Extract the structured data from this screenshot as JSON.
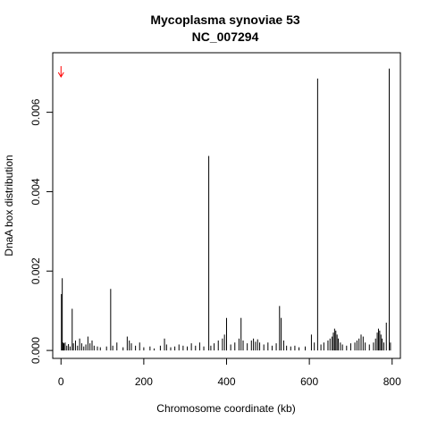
{
  "chart_data": {
    "type": "bar",
    "title": "Mycoplasma synoviae 53",
    "subtitle": "NC_007294",
    "xlabel": "Chromosome coordinate (kb)",
    "ylabel": "DnaA box distribution",
    "xlim": [
      -20,
      820
    ],
    "ylim": [
      -0.0002,
      0.0075
    ],
    "x_ticks": [
      0,
      200,
      400,
      600,
      800
    ],
    "x_tick_labels": [
      "0",
      "200",
      "400",
      "600",
      "800"
    ],
    "y_ticks": [
      0.0,
      0.002,
      0.004,
      0.006
    ],
    "y_tick_labels": [
      "0.000",
      "0.002",
      "0.004",
      "0.006"
    ],
    "grid": false,
    "origin_marker": {
      "x": 0,
      "color": "#ff0000"
    },
    "bar_color": "#000000",
    "bars": [
      {
        "x": 1,
        "y": 0.00142
      },
      {
        "x": 3,
        "y": 0.00182
      },
      {
        "x": 5,
        "y": 0.0002
      },
      {
        "x": 7,
        "y": 0.00018
      },
      {
        "x": 10,
        "y": 0.0002
      },
      {
        "x": 14,
        "y": 0.00012
      },
      {
        "x": 18,
        "y": 0.00016
      },
      {
        "x": 22,
        "y": 0.0001
      },
      {
        "x": 27,
        "y": 0.00105
      },
      {
        "x": 30,
        "y": 0.00018
      },
      {
        "x": 35,
        "y": 0.00025
      },
      {
        "x": 40,
        "y": 0.00012
      },
      {
        "x": 45,
        "y": 0.0003
      },
      {
        "x": 50,
        "y": 0.00018
      },
      {
        "x": 55,
        "y": 0.0001
      },
      {
        "x": 60,
        "y": 0.00015
      },
      {
        "x": 65,
        "y": 0.00035
      },
      {
        "x": 70,
        "y": 0.00018
      },
      {
        "x": 75,
        "y": 0.00025
      },
      {
        "x": 80,
        "y": 0.00012
      },
      {
        "x": 88,
        "y": 0.0001
      },
      {
        "x": 95,
        "y": 8e-05
      },
      {
        "x": 110,
        "y": 0.0001
      },
      {
        "x": 120,
        "y": 0.00155
      },
      {
        "x": 125,
        "y": 0.00012
      },
      {
        "x": 135,
        "y": 0.0002
      },
      {
        "x": 150,
        "y": 8e-05
      },
      {
        "x": 160,
        "y": 0.00035
      },
      {
        "x": 165,
        "y": 0.00025
      },
      {
        "x": 170,
        "y": 0.00018
      },
      {
        "x": 180,
        "y": 0.00012
      },
      {
        "x": 190,
        "y": 0.0002
      },
      {
        "x": 200,
        "y": 8e-05
      },
      {
        "x": 215,
        "y": 0.0001
      },
      {
        "x": 225,
        "y": 5e-05
      },
      {
        "x": 240,
        "y": 0.00012
      },
      {
        "x": 250,
        "y": 0.0003
      },
      {
        "x": 255,
        "y": 0.00015
      },
      {
        "x": 265,
        "y": 8e-05
      },
      {
        "x": 275,
        "y": 0.0001
      },
      {
        "x": 285,
        "y": 0.00015
      },
      {
        "x": 295,
        "y": 0.00012
      },
      {
        "x": 305,
        "y": 0.0001
      },
      {
        "x": 315,
        "y": 0.00018
      },
      {
        "x": 325,
        "y": 0.00012
      },
      {
        "x": 335,
        "y": 0.0002
      },
      {
        "x": 345,
        "y": 0.0001
      },
      {
        "x": 357,
        "y": 0.0049
      },
      {
        "x": 362,
        "y": 0.00012
      },
      {
        "x": 370,
        "y": 0.00018
      },
      {
        "x": 380,
        "y": 0.00025
      },
      {
        "x": 390,
        "y": 0.0003
      },
      {
        "x": 395,
        "y": 0.0004
      },
      {
        "x": 400,
        "y": 0.00082
      },
      {
        "x": 410,
        "y": 0.00015
      },
      {
        "x": 420,
        "y": 0.0002
      },
      {
        "x": 430,
        "y": 0.0003
      },
      {
        "x": 435,
        "y": 0.00082
      },
      {
        "x": 440,
        "y": 0.00025
      },
      {
        "x": 450,
        "y": 0.00018
      },
      {
        "x": 460,
        "y": 0.00025
      },
      {
        "x": 465,
        "y": 0.0003
      },
      {
        "x": 470,
        "y": 0.00022
      },
      {
        "x": 475,
        "y": 0.00028
      },
      {
        "x": 480,
        "y": 0.0002
      },
      {
        "x": 490,
        "y": 0.00015
      },
      {
        "x": 500,
        "y": 0.0002
      },
      {
        "x": 510,
        "y": 0.00012
      },
      {
        "x": 520,
        "y": 0.00018
      },
      {
        "x": 528,
        "y": 0.00112
      },
      {
        "x": 532,
        "y": 0.00082
      },
      {
        "x": 538,
        "y": 0.00025
      },
      {
        "x": 545,
        "y": 0.00012
      },
      {
        "x": 555,
        "y": 0.0001
      },
      {
        "x": 565,
        "y": 0.00012
      },
      {
        "x": 575,
        "y": 8e-05
      },
      {
        "x": 590,
        "y": 0.0001
      },
      {
        "x": 605,
        "y": 0.0004
      },
      {
        "x": 612,
        "y": 0.0002
      },
      {
        "x": 620,
        "y": 0.00685
      },
      {
        "x": 628,
        "y": 0.00015
      },
      {
        "x": 635,
        "y": 0.0002
      },
      {
        "x": 645,
        "y": 0.00025
      },
      {
        "x": 650,
        "y": 0.0003
      },
      {
        "x": 655,
        "y": 0.00035
      },
      {
        "x": 658,
        "y": 0.00045
      },
      {
        "x": 661,
        "y": 0.00055
      },
      {
        "x": 664,
        "y": 0.0005
      },
      {
        "x": 667,
        "y": 0.0004
      },
      {
        "x": 670,
        "y": 0.0003
      },
      {
        "x": 675,
        "y": 0.0002
      },
      {
        "x": 680,
        "y": 0.00015
      },
      {
        "x": 690,
        "y": 0.00012
      },
      {
        "x": 700,
        "y": 0.00018
      },
      {
        "x": 710,
        "y": 0.0002
      },
      {
        "x": 715,
        "y": 0.00025
      },
      {
        "x": 720,
        "y": 0.0003
      },
      {
        "x": 725,
        "y": 0.0004
      },
      {
        "x": 730,
        "y": 0.00035
      },
      {
        "x": 735,
        "y": 0.0002
      },
      {
        "x": 745,
        "y": 0.00015
      },
      {
        "x": 755,
        "y": 0.0002
      },
      {
        "x": 760,
        "y": 0.0003
      },
      {
        "x": 764,
        "y": 0.00045
      },
      {
        "x": 767,
        "y": 0.00055
      },
      {
        "x": 770,
        "y": 0.0005
      },
      {
        "x": 773,
        "y": 0.0004
      },
      {
        "x": 776,
        "y": 0.0003
      },
      {
        "x": 780,
        "y": 0.0002
      },
      {
        "x": 786,
        "y": 0.0007
      },
      {
        "x": 793,
        "y": 0.0071
      },
      {
        "x": 796,
        "y": 0.0002
      }
    ]
  }
}
